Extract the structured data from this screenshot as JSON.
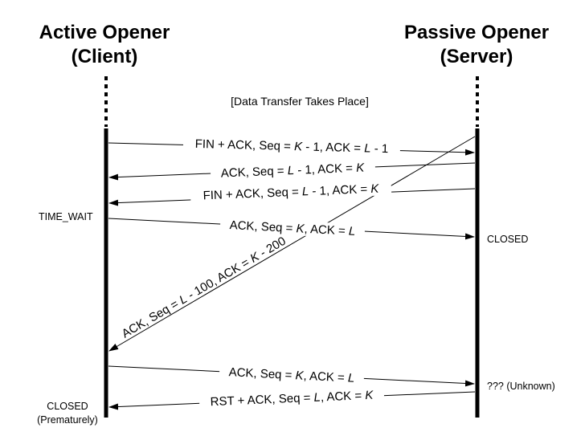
{
  "client": {
    "title_line1": "Active Opener",
    "title_line2": "(Client)",
    "state_time_wait": "TIME_WAIT",
    "state_closed_line1": "CLOSED",
    "state_closed_line2": "(Prematurely)"
  },
  "server": {
    "title_line1": "Passive Opener",
    "title_line2": "(Server)",
    "state_closed": "CLOSED",
    "state_unknown": "??? (Unknown)"
  },
  "note": "[Data Transfer Takes Place]",
  "messages": {
    "m1": {
      "a": "FIN + ACK, Seq = ",
      "b": "K",
      "c": " - 1, ACK = ",
      "d": "L",
      "e": " - 1"
    },
    "m2": {
      "a": "ACK, Seq = ",
      "b": "L",
      "c": " - 1, ACK = ",
      "d": "K",
      "e": ""
    },
    "m3": {
      "a": "FIN + ACK, Seq = ",
      "b": "L",
      "c": " - 1, ACK = ",
      "d": "K",
      "e": ""
    },
    "m4": {
      "a": "ACK, Seq = ",
      "b": "K",
      "c": ", ACK = ",
      "d": "L",
      "e": ""
    },
    "m5": {
      "a": "ACK, Seq = ",
      "b": "L",
      "c": " - 100, ACK = ",
      "d": "K",
      "e": " - 200"
    },
    "m6": {
      "a": "ACK, Seq = ",
      "b": "K",
      "c": ", ACK = ",
      "d": "L",
      "e": ""
    },
    "m7": {
      "a": "RST + ACK, Seq = ",
      "b": "L",
      "c": ", ACK = ",
      "d": "K",
      "e": ""
    }
  }
}
